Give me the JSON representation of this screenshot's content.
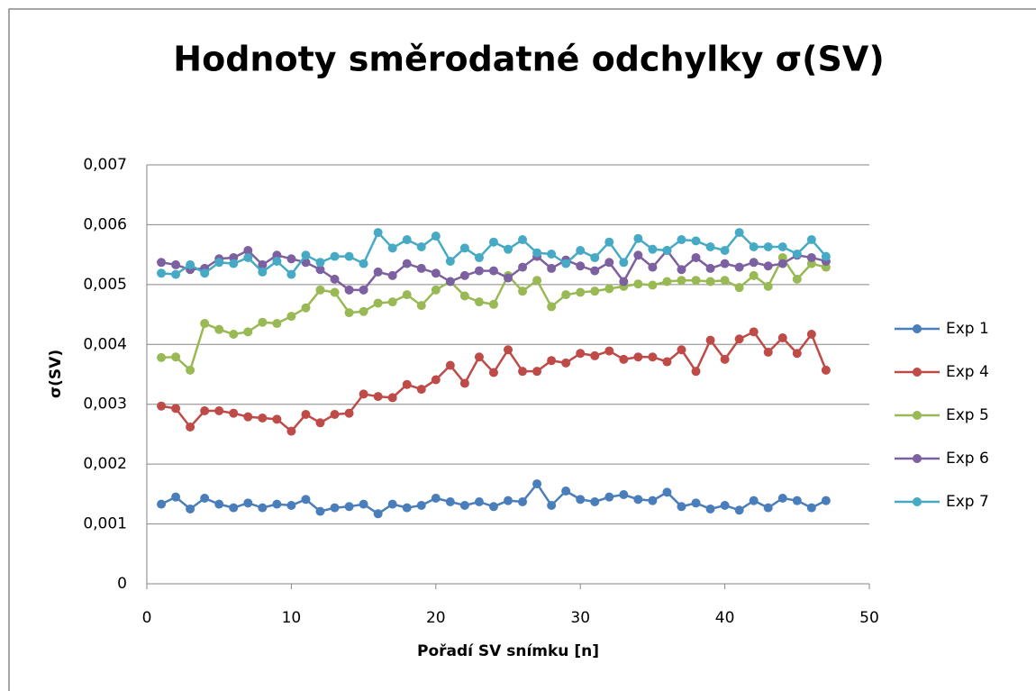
{
  "chart_data": {
    "type": "line",
    "title": "Hodnoty směrodatné odchylky σ(SV)",
    "xlabel": "Pořadí SV snímku [n]",
    "ylabel": "σ(SV)",
    "x": [
      1,
      2,
      3,
      4,
      5,
      6,
      7,
      8,
      9,
      10,
      11,
      12,
      13,
      14,
      15,
      16,
      17,
      18,
      19,
      20,
      21,
      22,
      23,
      24,
      25,
      26,
      27,
      28,
      29,
      30,
      31,
      32,
      33,
      34,
      35,
      36,
      37,
      38,
      39,
      40,
      41,
      42,
      43,
      44,
      45,
      46,
      47
    ],
    "series": [
      {
        "name": "Exp 1",
        "color": "#4a7ebb",
        "values": [
          0.00133,
          0.00145,
          0.00125,
          0.00143,
          0.00133,
          0.00127,
          0.00135,
          0.00127,
          0.00133,
          0.00131,
          0.00141,
          0.00121,
          0.00127,
          0.00129,
          0.00133,
          0.00117,
          0.00133,
          0.00127,
          0.00131,
          0.00143,
          0.00137,
          0.00131,
          0.00137,
          0.00129,
          0.00139,
          0.00137,
          0.00167,
          0.00131,
          0.00155,
          0.00141,
          0.00137,
          0.00145,
          0.00149,
          0.00141,
          0.00139,
          0.00153,
          0.00129,
          0.00135,
          0.00125,
          0.00131,
          0.00123,
          0.00139,
          0.00127,
          0.00143,
          0.00139,
          0.00127,
          0.00139
        ]
      },
      {
        "name": "Exp 4",
        "color": "#be4b48",
        "values": [
          0.00297,
          0.00293,
          0.00262,
          0.00289,
          0.00289,
          0.00285,
          0.00279,
          0.00277,
          0.00275,
          0.00255,
          0.00283,
          0.00269,
          0.00283,
          0.00285,
          0.00317,
          0.00313,
          0.00311,
          0.00333,
          0.00325,
          0.00341,
          0.00365,
          0.00335,
          0.00379,
          0.00353,
          0.00391,
          0.00355,
          0.00355,
          0.00373,
          0.00369,
          0.00385,
          0.00381,
          0.00389,
          0.00375,
          0.00379,
          0.00379,
          0.00371,
          0.00391,
          0.00355,
          0.00407,
          0.00375,
          0.00409,
          0.00421,
          0.00387,
          0.00411,
          0.00385,
          0.00417,
          0.00357
        ]
      },
      {
        "name": "Exp 5",
        "color": "#98b954",
        "values": [
          0.00378,
          0.00379,
          0.00357,
          0.00435,
          0.00425,
          0.00417,
          0.00421,
          0.00437,
          0.00435,
          0.00447,
          0.00461,
          0.00491,
          0.00487,
          0.00453,
          0.00455,
          0.00469,
          0.00471,
          0.00483,
          0.00465,
          0.00491,
          0.00505,
          0.00481,
          0.00471,
          0.00467,
          0.00515,
          0.00489,
          0.00507,
          0.00463,
          0.00483,
          0.00487,
          0.00489,
          0.00493,
          0.00497,
          0.00501,
          0.00499,
          0.00505,
          0.00507,
          0.00507,
          0.00505,
          0.00507,
          0.00495,
          0.00515,
          0.00497,
          0.00545,
          0.00509,
          0.00535,
          0.00529
        ]
      },
      {
        "name": "Exp 6",
        "color": "#7d60a0",
        "values": [
          0.00537,
          0.00533,
          0.00525,
          0.00527,
          0.00543,
          0.00545,
          0.00557,
          0.00533,
          0.00549,
          0.00543,
          0.00537,
          0.00525,
          0.00509,
          0.00491,
          0.00491,
          0.00521,
          0.00515,
          0.00535,
          0.00527,
          0.00519,
          0.00505,
          0.00515,
          0.00523,
          0.00523,
          0.00511,
          0.00529,
          0.00547,
          0.00527,
          0.00541,
          0.00531,
          0.00523,
          0.00537,
          0.00505,
          0.00549,
          0.00529,
          0.00557,
          0.00525,
          0.00545,
          0.00527,
          0.00535,
          0.00529,
          0.00537,
          0.00531,
          0.00535,
          0.00549,
          0.00545,
          0.00539
        ]
      },
      {
        "name": "Exp 7",
        "color": "#46aac5",
        "values": [
          0.00519,
          0.00517,
          0.00533,
          0.00519,
          0.00537,
          0.00535,
          0.00545,
          0.00521,
          0.00539,
          0.00517,
          0.00549,
          0.00537,
          0.00547,
          0.00547,
          0.00535,
          0.00587,
          0.00561,
          0.00575,
          0.00563,
          0.00581,
          0.00539,
          0.00561,
          0.00545,
          0.00571,
          0.00559,
          0.00575,
          0.00553,
          0.00551,
          0.00535,
          0.00557,
          0.00545,
          0.00571,
          0.00537,
          0.00577,
          0.00559,
          0.00557,
          0.00575,
          0.00573,
          0.00563,
          0.00557,
          0.00587,
          0.00563,
          0.00563,
          0.00563,
          0.00551,
          0.00575,
          0.00547
        ]
      }
    ],
    "xlim": [
      0,
      50
    ],
    "xticks": [
      0,
      10,
      20,
      30,
      40,
      50
    ],
    "ylim": [
      0,
      0.007
    ],
    "yticks": [
      0,
      {
        "value": 0.001,
        "label": "0,001"
      },
      {
        "value": 0.002,
        "label": "0,002"
      },
      {
        "value": 0.003,
        "label": "0,003"
      },
      {
        "value": 0.004,
        "label": "0,004"
      },
      {
        "value": 0.005,
        "label": "0,005"
      },
      {
        "value": 0.006,
        "label": "0,006"
      },
      {
        "value": 0.007,
        "label": "0,007"
      }
    ],
    "grid": true,
    "legend": "right"
  }
}
